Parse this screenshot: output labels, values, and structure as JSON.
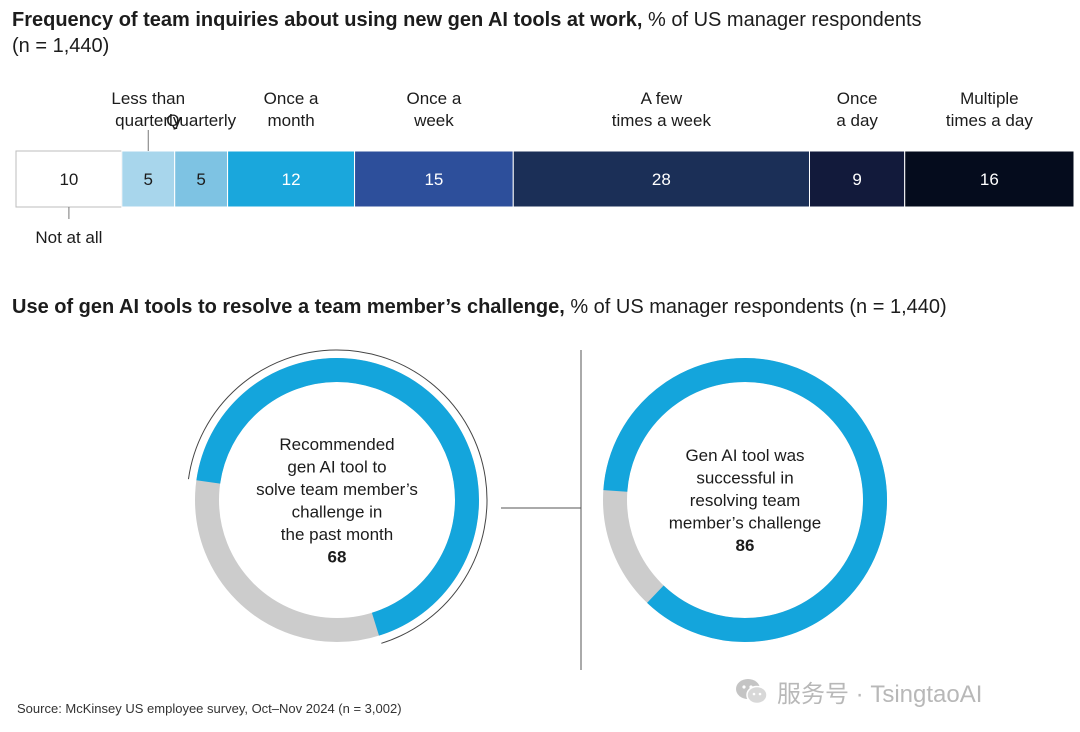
{
  "chart_data": [
    {
      "type": "bar",
      "orientation": "stacked-horizontal-100",
      "title": "Frequency of team inquiries about using new gen AI tools at work,",
      "subtitle": "% of US manager respondents",
      "sample": "(n = 1,440)",
      "categories": [
        "Not at all",
        "Less than quarterly",
        "Quarterly",
        "Once a month",
        "Once a week",
        "A few times a week",
        "Once a day",
        "Multiple times a day"
      ],
      "label_lines": [
        [
          "Not at all"
        ],
        [
          "Less than",
          "quarterly"
        ],
        [
          "Quarterly"
        ],
        [
          "Once a",
          "month"
        ],
        [
          "Once a",
          "week"
        ],
        [
          "A few",
          "times a week"
        ],
        [
          "Once",
          "a day"
        ],
        [
          "Multiple",
          "times a day"
        ]
      ],
      "values": [
        10,
        5,
        5,
        12,
        15,
        28,
        9,
        16
      ],
      "colors": [
        "#ffffff",
        "#a8d6ec",
        "#7ec3e3",
        "#1aa7dc",
        "#2d4f9b",
        "#1b2f57",
        "#121a3b",
        "#050c1d"
      ],
      "value_colors": [
        "#1c1c1c",
        "#1c1c1c",
        "#1c1c1c",
        "#ffffff",
        "#ffffff",
        "#ffffff",
        "#ffffff",
        "#ffffff"
      ],
      "label_position": [
        "below",
        "above",
        "above",
        "above",
        "above",
        "above",
        "above",
        "above"
      ]
    },
    {
      "type": "pie",
      "title": "Use of gen AI tools to resolve a team member’s challenge,",
      "subtitle": "% of US manager respondents (n = 1,440)",
      "donuts": [
        {
          "label_lines": [
            "Recommended",
            "gen AI tool to",
            "solve team member’s",
            "challenge in",
            "the past month"
          ],
          "value": 68,
          "value_text": "68"
        },
        {
          "label_lines": [
            "Gen AI tool was",
            "successful in",
            "resolving team",
            "member’s challenge"
          ],
          "value": 86,
          "value_text": "86"
        }
      ],
      "colors": {
        "filled": "#14a5dc",
        "remainder": "#cccccc"
      }
    }
  ],
  "source": "Source: McKinsey US employee survey, Oct–Nov 2024 (n = 3,002)",
  "watermark": "服务号 · TsingtaoAI"
}
